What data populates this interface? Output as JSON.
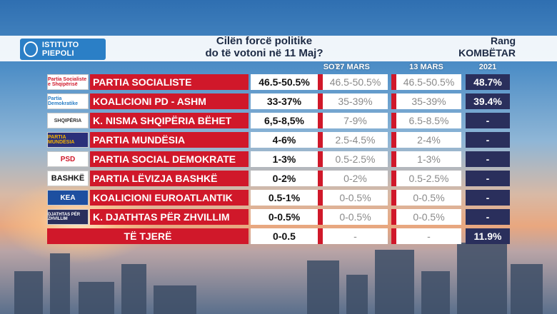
{
  "header": {
    "logo_text": "ISTITUTO PIEPOLI",
    "question_line1": "Cilën forcë politike",
    "question_line2": "do të votoni në 11 Maj?",
    "rang_line1": "Rang",
    "rang_line2": "KOMBËTAR"
  },
  "columns": [
    "SOT",
    "27 MARS",
    "13 MARS",
    "2021"
  ],
  "rows": [
    {
      "logo": "Partia Socialiste e Shqipërisë",
      "name": "PARTIA SOCIALISTE",
      "sot": "46.5-50.5%",
      "m27": "46.5-50.5%",
      "m13": "46.5-50.5%",
      "y2021": "48.7%"
    },
    {
      "logo": "Partia Demokratike",
      "name": "KOALICIONI PD - ASHM",
      "sot": "33-37%",
      "m27": "35-39%",
      "m13": "35-39%",
      "y2021": "39.4%"
    },
    {
      "logo": "SHQIPËRIA",
      "name": "K. NISMA SHQIPËRIA BËHET",
      "sot": "6,5-8,5%",
      "m27": "7-9%",
      "m13": "6.5-8.5%",
      "y2021": "-"
    },
    {
      "logo": "PARTIA MUNDËSIA",
      "name": "PARTIA MUNDËSIA",
      "sot": "4-6%",
      "m27": "2.5-4.5%",
      "m13": "2-4%",
      "y2021": "-"
    },
    {
      "logo": "PSD",
      "name": "PARTIA SOCIAL DEMOKRATE",
      "sot": "1-3%",
      "m27": "0.5-2.5%",
      "m13": "1-3%",
      "y2021": "-"
    },
    {
      "logo": "BASHKË",
      "name": "PARTIA LËVIZJA BASHKË",
      "sot": "0-2%",
      "m27": "0-2%",
      "m13": "0.5-2.5%",
      "y2021": "-"
    },
    {
      "logo": "KEA",
      "name": "KOALICIONI EUROATLANTIK",
      "sot": "0.5-1%",
      "m27": "0-0.5%",
      "m13": "0-0.5%",
      "y2021": "-"
    },
    {
      "logo": "DJATHTAS PËR ZHVILLIM",
      "name": "K. DJATHTAS PËR ZHVILLIM",
      "sot": "0-0.5%",
      "m27": "0-0.5%",
      "m13": "0-0.5%",
      "y2021": "-"
    }
  ],
  "others": {
    "name": "TË TJERË",
    "sot": "0-0.5",
    "m27": "-",
    "m13": "-",
    "y2021": "11.9%"
  },
  "colors": {
    "red": "#d0182a",
    "navy": "#2a2f5c",
    "logo_blue": "#2b7fc6"
  }
}
